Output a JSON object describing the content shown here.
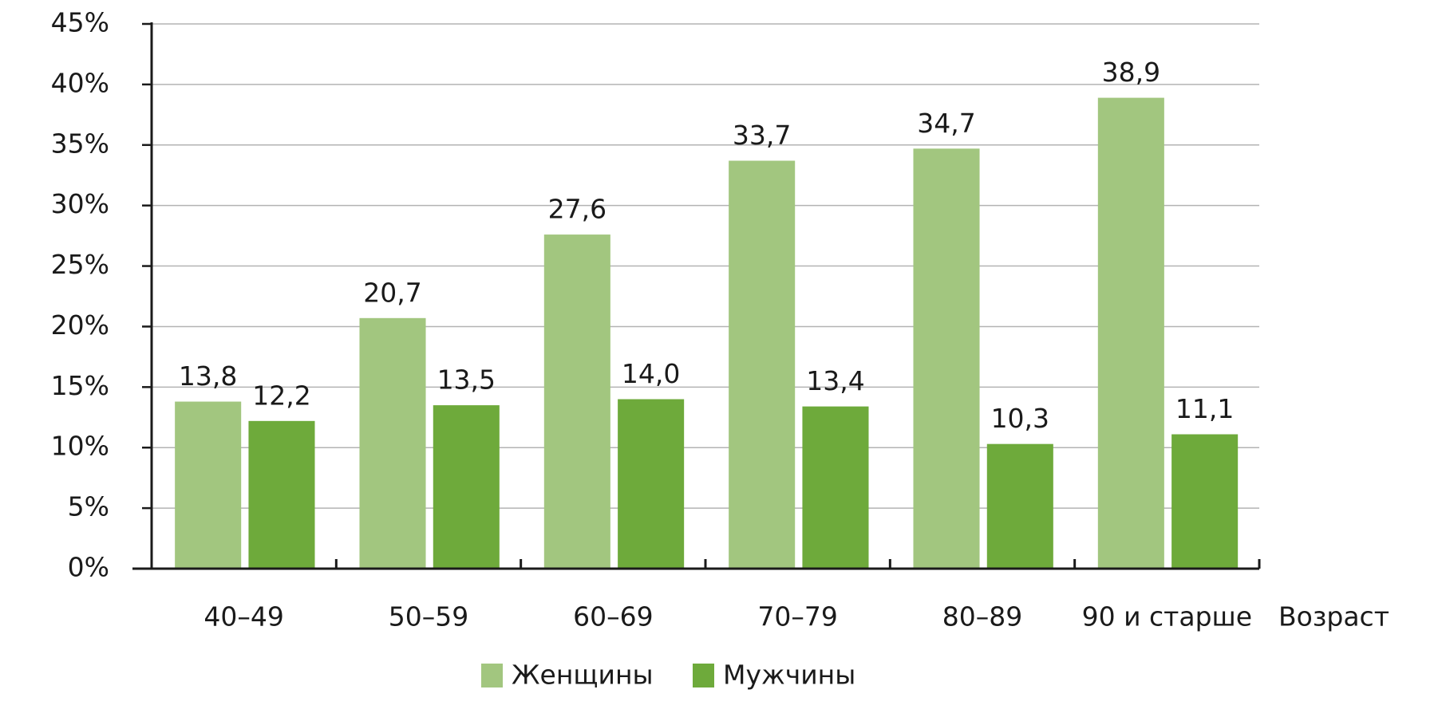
{
  "chart_data": {
    "type": "bar",
    "categories": [
      "40–49",
      "50–59",
      "60–69",
      "70–79",
      "80–89",
      "90 и старше"
    ],
    "x_label": "Возраст",
    "series": [
      {
        "name": "Женщины",
        "color": "#a2c67f",
        "values": [
          13.8,
          20.7,
          27.6,
          33.7,
          34.7,
          38.9
        ],
        "value_labels": [
          "13,8",
          "20,7",
          "27,6",
          "33,7",
          "34,7",
          "38,9"
        ]
      },
      {
        "name": "Мужчины",
        "color": "#6eaa3b",
        "values": [
          12.2,
          13.5,
          14.0,
          13.4,
          10.3,
          11.1
        ],
        "value_labels": [
          "12,2",
          "13,5",
          "14,0",
          "13,4",
          "10,3",
          "11,1"
        ]
      }
    ],
    "ylim": [
      0,
      45
    ],
    "yticks": [
      {
        "value": 0,
        "label": "0%"
      },
      {
        "value": 5,
        "label": "5%"
      },
      {
        "value": 10,
        "label": "10%"
      },
      {
        "value": 15,
        "label": "15%"
      },
      {
        "value": 20,
        "label": "20%"
      },
      {
        "value": 25,
        "label": "25%"
      },
      {
        "value": 30,
        "label": "30%"
      },
      {
        "value": 35,
        "label": "35%"
      },
      {
        "value": 40,
        "label": "40%"
      },
      {
        "value": 45,
        "label": "45%"
      }
    ],
    "grid": true,
    "legend": "bottom"
  }
}
